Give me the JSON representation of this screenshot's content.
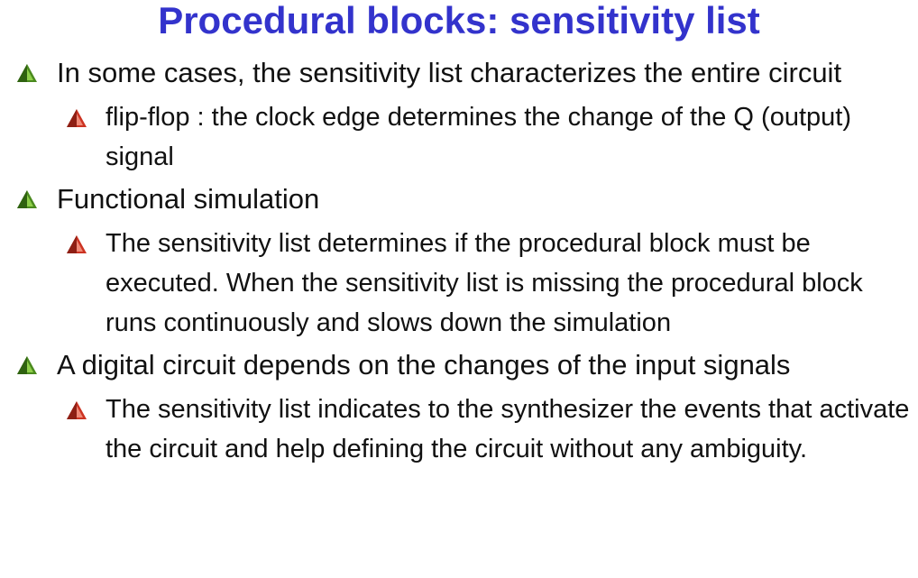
{
  "title": "Procedural blocks: sensitivity list",
  "colors": {
    "title": "#3333cc",
    "bullet_level1": "#4a8a1e",
    "bullet_level2": "#cc3322"
  },
  "icons": {
    "level1": "green-triangle-bullet-icon",
    "level2": "red-triangle-bullet-icon"
  },
  "bullets": [
    {
      "text": "In some cases, the sensitivity list characterizes the entire circuit",
      "sub": [
        "flip-flop : the clock edge determines the change of the Q (output) signal"
      ]
    },
    {
      "text": "Functional simulation",
      "sub": [
        "The sensitivity list determines if the procedural block must be executed. When the sensitivity list is missing the procedural block runs continuously and slows down the simulation"
      ]
    },
    {
      "text": "A digital circuit depends on the changes of the input signals",
      "sub": [
        "The sensitivity list indicates to the synthesizer the events that activate the circuit and help defining the circuit without any ambiguity."
      ]
    }
  ]
}
